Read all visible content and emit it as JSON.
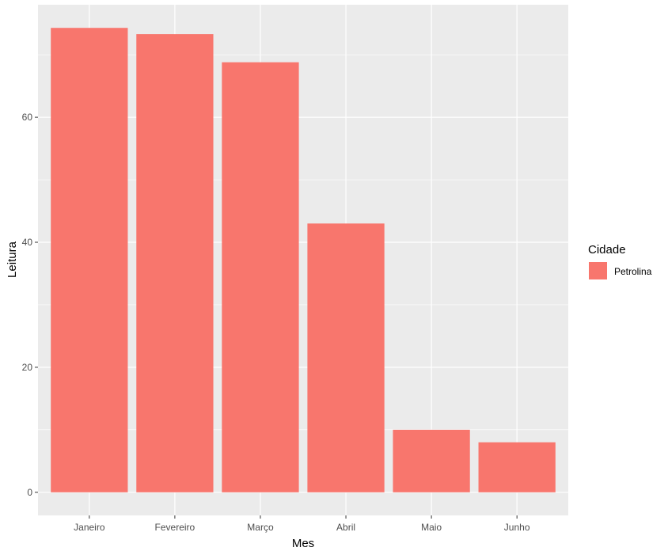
{
  "chart_data": {
    "type": "bar",
    "categories": [
      "Janeiro",
      "Fevereiro",
      "Março",
      "Abril",
      "Maio",
      "Junho"
    ],
    "series": [
      {
        "name": "Petrolina",
        "values": [
          74.3,
          73.3,
          68.8,
          43.0,
          10.0,
          8.0
        ]
      }
    ],
    "xlabel": "Mes",
    "ylabel": "Leitura",
    "ylim": [
      -3.7,
      78
    ],
    "yticks": [
      0,
      20,
      40,
      60
    ],
    "grid": true,
    "legend": {
      "title": "Cidade",
      "position": "right"
    },
    "colors": {
      "bar": "#F8766D",
      "panel": "#EBEBEB",
      "grid": "#FFFFFF"
    }
  }
}
